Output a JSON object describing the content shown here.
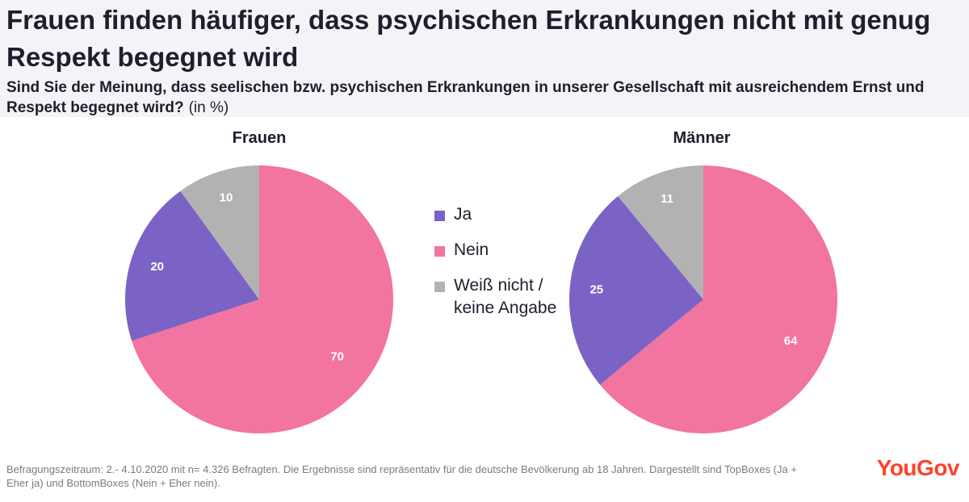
{
  "header": {
    "title": "Frauen finden häufiger, dass psychischen Erkrankungen nicht mit genug Respekt begegnet wird",
    "question": "Sind Sie der Meinung, dass seelischen bzw. psychischen Erkrankungen in unserer Gesellschaft mit ausreichendem Ernst und Respekt begegnet wird?",
    "unit": "(in %)"
  },
  "colors": {
    "ja": "#7b63c6",
    "nein": "#f274a0",
    "weiss_nicht": "#b2b2b2"
  },
  "legend": {
    "ja": "Ja",
    "nein": "Nein",
    "weiss_nicht": "Weiß nicht / keine Angabe"
  },
  "chart_data": [
    {
      "type": "pie",
      "title": "Frauen",
      "labels": [
        "Nein",
        "Ja",
        "Weiß nicht / keine Angabe"
      ],
      "values": [
        70,
        20,
        10
      ]
    },
    {
      "type": "pie",
      "title": "Männer",
      "labels": [
        "Nein",
        "Ja",
        "Weiß nicht / keine Angabe"
      ],
      "values": [
        64,
        25,
        11
      ]
    }
  ],
  "footnote": "Befragungszeitraum: 2.- 4.10.2020 mit n= 4.326 Befragten. Die Ergebnisse sind repräsentativ für die deutsche Bevölkerung ab 18 Jahren. Dargestellt sind TopBoxes (Ja + Eher ja) und BottomBoxes (Nein + Eher nein).",
  "brand": {
    "logo_text": "YouGov"
  }
}
